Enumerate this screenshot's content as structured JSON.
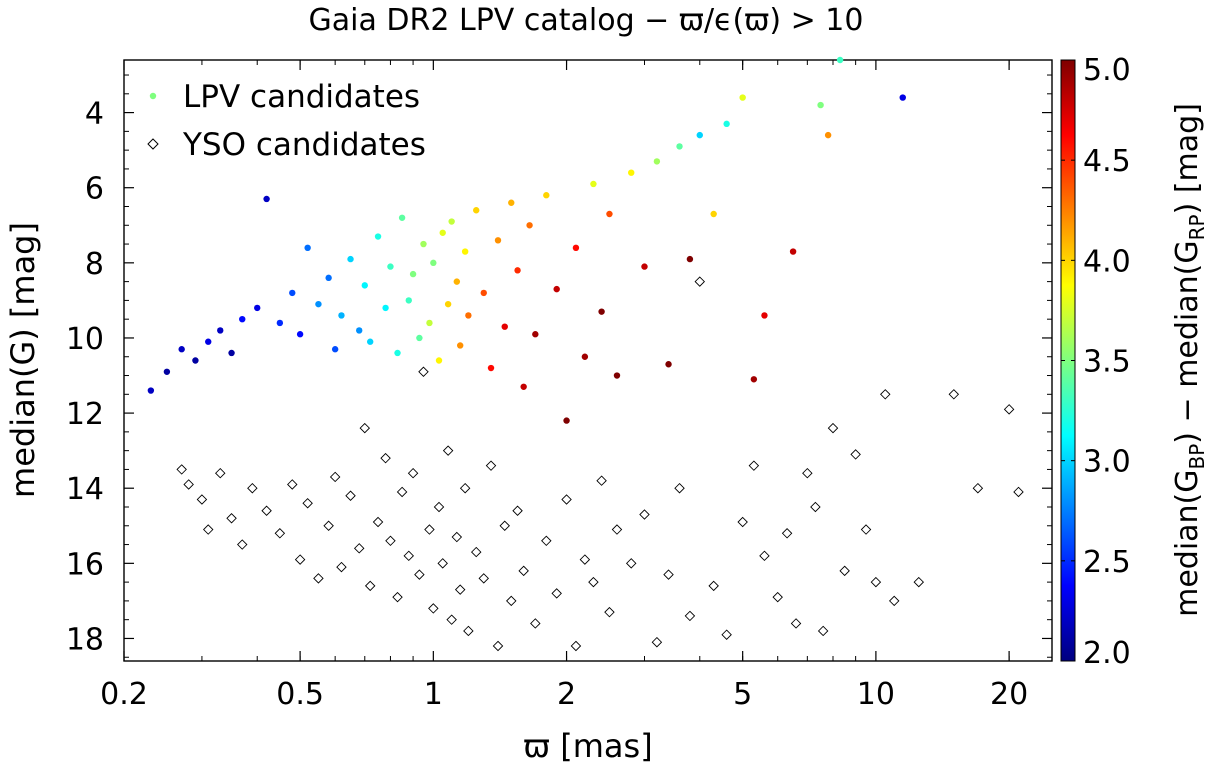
{
  "chart_data": {
    "type": "scatter",
    "title": "Gaia DR2 LPV catalog   −   ϖ/ϵ(ϖ) > 10",
    "xlabel": "ϖ  [mas]",
    "ylabel": "median(G)  [mag]",
    "xscale": "log",
    "xlim": [
      0.2,
      25
    ],
    "ylim": [
      18.6,
      2.6
    ],
    "y_inverted": true,
    "x_ticks": [
      0.2,
      0.5,
      1,
      2,
      5,
      10,
      20
    ],
    "x_tick_labels": [
      "0.2",
      "0.5",
      "1",
      "2",
      "5",
      "10",
      "20"
    ],
    "y_ticks": [
      4,
      6,
      8,
      10,
      12,
      14,
      16,
      18
    ],
    "y_tick_labels": [
      "4",
      "6",
      "8",
      "10",
      "12",
      "14",
      "16",
      "18"
    ],
    "grid": false,
    "legend_position": "top-left",
    "colorbar": {
      "label": "median(G_BP) − median(G_RP)  [mag]",
      "label_parts": {
        "pre": "median(G",
        "sub1": "BP",
        "mid": ") − median(G",
        "sub2": "RP",
        "post": ")  [mag]"
      },
      "range": [
        2.0,
        5.0
      ],
      "ticks": [
        2.0,
        2.5,
        3.0,
        3.5,
        4.0,
        4.5,
        5.0
      ],
      "tick_labels": [
        "2.0",
        "2.5",
        "3.0",
        "3.5",
        "4.0",
        "4.5",
        "5.0"
      ],
      "colormap": "jet",
      "colormap_stops": [
        "#00007f",
        "#0000ff",
        "#007fff",
        "#00ffff",
        "#7fff7f",
        "#ffff00",
        "#ff7f00",
        "#ff0000",
        "#7f0000"
      ]
    },
    "series": [
      {
        "name": "LPV candidates",
        "marker": "filled-circle",
        "legend_color": "#7fff7f",
        "points": [
          [
            0.23,
            11.4,
            2.2
          ],
          [
            0.25,
            10.9,
            2.1
          ],
          [
            0.27,
            10.3,
            2.2
          ],
          [
            0.29,
            10.6,
            2.1
          ],
          [
            0.31,
            10.1,
            2.3
          ],
          [
            0.33,
            9.8,
            2.2
          ],
          [
            0.35,
            10.4,
            2.1
          ],
          [
            0.37,
            9.5,
            2.4
          ],
          [
            0.4,
            9.2,
            2.3
          ],
          [
            0.42,
            6.3,
            2.2
          ],
          [
            0.45,
            9.6,
            2.5
          ],
          [
            0.48,
            8.8,
            2.6
          ],
          [
            0.5,
            9.9,
            2.4
          ],
          [
            0.52,
            7.6,
            2.7
          ],
          [
            0.55,
            9.1,
            2.8
          ],
          [
            0.58,
            8.4,
            2.7
          ],
          [
            0.6,
            10.3,
            2.6
          ],
          [
            0.62,
            9.4,
            2.9
          ],
          [
            0.65,
            7.9,
            3.0
          ],
          [
            0.68,
            9.8,
            2.8
          ],
          [
            0.7,
            8.6,
            3.1
          ],
          [
            0.72,
            10.1,
            3.0
          ],
          [
            0.75,
            7.3,
            3.2
          ],
          [
            0.78,
            9.2,
            3.1
          ],
          [
            0.8,
            8.1,
            3.3
          ],
          [
            0.83,
            10.4,
            3.2
          ],
          [
            0.85,
            6.8,
            3.4
          ],
          [
            0.88,
            9.0,
            3.3
          ],
          [
            0.9,
            8.3,
            3.5
          ],
          [
            0.93,
            10.0,
            3.4
          ],
          [
            0.95,
            7.5,
            3.6
          ],
          [
            0.98,
            9.6,
            3.7
          ],
          [
            1.0,
            8.0,
            3.5
          ],
          [
            1.03,
            10.6,
            3.9
          ],
          [
            1.05,
            7.2,
            3.8
          ],
          [
            1.08,
            9.1,
            4.0
          ],
          [
            1.1,
            6.9,
            3.7
          ],
          [
            1.13,
            8.5,
            4.1
          ],
          [
            1.15,
            10.2,
            4.2
          ],
          [
            1.18,
            7.7,
            3.9
          ],
          [
            1.2,
            9.4,
            4.3
          ],
          [
            1.25,
            6.6,
            4.0
          ],
          [
            1.3,
            8.8,
            4.4
          ],
          [
            1.35,
            10.8,
            4.6
          ],
          [
            1.4,
            7.4,
            4.2
          ],
          [
            1.45,
            9.7,
            4.7
          ],
          [
            1.5,
            6.4,
            4.1
          ],
          [
            1.55,
            8.2,
            4.5
          ],
          [
            1.6,
            11.3,
            4.8
          ],
          [
            1.65,
            7.0,
            4.3
          ],
          [
            1.7,
            9.9,
            4.9
          ],
          [
            1.8,
            6.2,
            4.0
          ],
          [
            1.9,
            8.7,
            4.8
          ],
          [
            2.0,
            12.2,
            5.0
          ],
          [
            2.1,
            7.6,
            4.6
          ],
          [
            2.2,
            10.5,
            4.9
          ],
          [
            2.3,
            5.9,
            3.8
          ],
          [
            2.4,
            9.3,
            5.0
          ],
          [
            2.5,
            6.7,
            4.4
          ],
          [
            2.6,
            11.0,
            5.0
          ],
          [
            2.8,
            5.6,
            3.9
          ],
          [
            3.0,
            8.1,
            4.8
          ],
          [
            3.2,
            5.3,
            3.6
          ],
          [
            3.4,
            10.7,
            5.0
          ],
          [
            3.6,
            4.9,
            3.4
          ],
          [
            3.8,
            7.9,
            5.0
          ],
          [
            4.0,
            4.6,
            3.0
          ],
          [
            4.3,
            6.7,
            4.0
          ],
          [
            4.6,
            4.3,
            3.2
          ],
          [
            5.0,
            3.6,
            3.8
          ],
          [
            5.3,
            11.1,
            4.9
          ],
          [
            5.6,
            9.4,
            4.7
          ],
          [
            6.5,
            7.7,
            4.8
          ],
          [
            7.5,
            3.8,
            3.5
          ],
          [
            7.8,
            4.6,
            4.2
          ],
          [
            8.3,
            2.6,
            3.3
          ],
          [
            11.5,
            3.6,
            2.3
          ]
        ]
      },
      {
        "name": "YSO candidates",
        "marker": "open-diamond",
        "color": "#000000",
        "points": [
          [
            0.27,
            13.5
          ],
          [
            0.28,
            13.9
          ],
          [
            0.3,
            14.3
          ],
          [
            0.31,
            15.1
          ],
          [
            0.33,
            13.6
          ],
          [
            0.35,
            14.8
          ],
          [
            0.37,
            15.5
          ],
          [
            0.39,
            14.0
          ],
          [
            0.42,
            14.6
          ],
          [
            0.45,
            15.2
          ],
          [
            0.48,
            13.9
          ],
          [
            0.5,
            15.9
          ],
          [
            0.52,
            14.4
          ],
          [
            0.55,
            16.4
          ],
          [
            0.58,
            15.0
          ],
          [
            0.6,
            13.7
          ],
          [
            0.62,
            16.1
          ],
          [
            0.65,
            14.2
          ],
          [
            0.68,
            15.6
          ],
          [
            0.7,
            12.4
          ],
          [
            0.72,
            16.6
          ],
          [
            0.75,
            14.9
          ],
          [
            0.78,
            13.2
          ],
          [
            0.8,
            15.4
          ],
          [
            0.83,
            16.9
          ],
          [
            0.85,
            14.1
          ],
          [
            0.88,
            15.8
          ],
          [
            0.9,
            13.6
          ],
          [
            0.93,
            16.3
          ],
          [
            0.95,
            10.9
          ],
          [
            0.98,
            15.1
          ],
          [
            1.0,
            17.2
          ],
          [
            1.03,
            14.5
          ],
          [
            1.05,
            16.0
          ],
          [
            1.08,
            13.0
          ],
          [
            1.1,
            17.5
          ],
          [
            1.13,
            15.3
          ],
          [
            1.15,
            16.7
          ],
          [
            1.18,
            14.0
          ],
          [
            1.2,
            17.8
          ],
          [
            1.25,
            15.7
          ],
          [
            1.3,
            16.4
          ],
          [
            1.35,
            13.4
          ],
          [
            1.4,
            18.2
          ],
          [
            1.45,
            15.0
          ],
          [
            1.5,
            17.0
          ],
          [
            1.55,
            14.6
          ],
          [
            1.6,
            16.2
          ],
          [
            1.7,
            17.6
          ],
          [
            1.8,
            15.4
          ],
          [
            1.9,
            16.8
          ],
          [
            2.0,
            14.3
          ],
          [
            2.1,
            18.2
          ],
          [
            2.2,
            15.9
          ],
          [
            2.3,
            16.5
          ],
          [
            2.4,
            13.8
          ],
          [
            2.5,
            17.3
          ],
          [
            2.6,
            15.1
          ],
          [
            2.8,
            16.0
          ],
          [
            3.0,
            14.7
          ],
          [
            3.2,
            18.1
          ],
          [
            3.4,
            16.3
          ],
          [
            3.6,
            14.0
          ],
          [
            3.8,
            17.4
          ],
          [
            4.0,
            8.5
          ],
          [
            4.3,
            16.6
          ],
          [
            4.6,
            17.9
          ],
          [
            5.0,
            14.9
          ],
          [
            5.3,
            13.4
          ],
          [
            5.6,
            15.8
          ],
          [
            6.0,
            16.9
          ],
          [
            6.3,
            15.2
          ],
          [
            6.6,
            17.6
          ],
          [
            7.0,
            13.6
          ],
          [
            7.3,
            14.5
          ],
          [
            7.6,
            17.8
          ],
          [
            8.0,
            12.4
          ],
          [
            8.5,
            16.2
          ],
          [
            9.0,
            13.1
          ],
          [
            9.5,
            15.1
          ],
          [
            10.0,
            16.5
          ],
          [
            10.5,
            11.5
          ],
          [
            11.0,
            17.0
          ],
          [
            12.5,
            16.5
          ],
          [
            15.0,
            11.5
          ],
          [
            17.0,
            14.0
          ],
          [
            20.0,
            11.9
          ],
          [
            21.0,
            14.1
          ]
        ]
      }
    ]
  }
}
